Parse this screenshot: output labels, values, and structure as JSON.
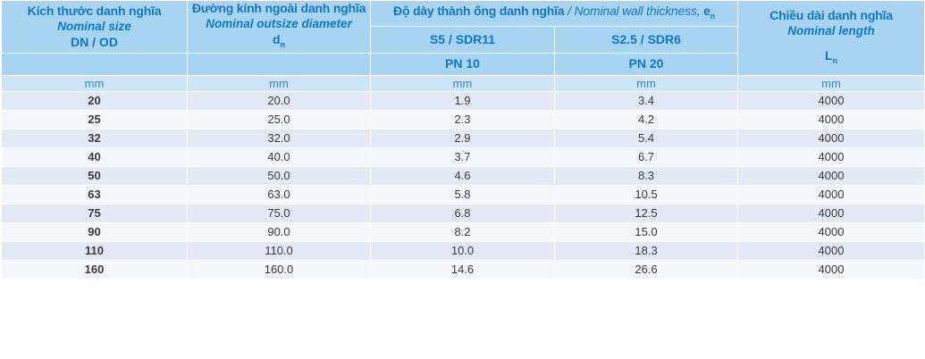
{
  "header": {
    "col1": {
      "title": "Kích thước danh nghĩa",
      "subtitle": "Nominal size",
      "code": "DN / OD"
    },
    "col2": {
      "title": "Đường kính ngoài danh nghĩa",
      "subtitle": "Nominal outsize diameter",
      "symbol": "d",
      "symbol_sub": "n"
    },
    "col3": {
      "title": "Độ dày thành ống danh nghĩa",
      "separator": " / ",
      "subtitle": "Nominal wall thickness, ",
      "symbol": "e",
      "symbol_sub": "n"
    },
    "col3a": {
      "series": "S5 / SDR11",
      "pressure": "PN 10"
    },
    "col3b": {
      "series": "S2.5 / SDR6",
      "pressure": "PN 20"
    },
    "col4": {
      "title": "Chiều dài danh nghĩa",
      "subtitle": "Nominal length",
      "symbol": "L",
      "symbol_sub": "n"
    }
  },
  "units": [
    "mm",
    "mm",
    "mm",
    "mm",
    "mm"
  ],
  "rows": [
    [
      "20",
      "20.0",
      "1.9",
      "3.4",
      "4000"
    ],
    [
      "25",
      "25.0",
      "2.3",
      "4.2",
      "4000"
    ],
    [
      "32",
      "32.0",
      "2.9",
      "5.4",
      "4000"
    ],
    [
      "40",
      "40.0",
      "3.7",
      "6.7",
      "4000"
    ],
    [
      "50",
      "50.0",
      "4.6",
      "8.3",
      "4000"
    ],
    [
      "63",
      "63.0",
      "5.8",
      "10.5",
      "4000"
    ],
    [
      "75",
      "75.0",
      "6.8",
      "12.5",
      "4000"
    ],
    [
      "90",
      "90.0",
      "8.2",
      "15.0",
      "4000"
    ],
    [
      "110",
      "110.0",
      "10.0",
      "18.3",
      "4000"
    ],
    [
      "160",
      "160.0",
      "14.6",
      "26.6",
      "4000"
    ]
  ],
  "colors": {
    "header_bg": "#a9d4f1",
    "header_text": "#0f78c0",
    "unit_bg": "#cfe4f6",
    "row_odd": "#e2ebf5",
    "row_even": "#f3f6fa"
  }
}
